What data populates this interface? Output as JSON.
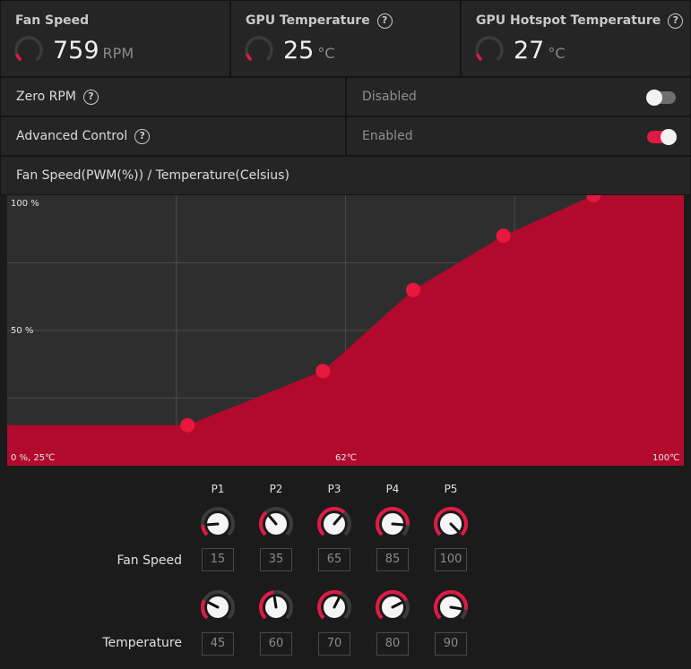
{
  "stats": {
    "fan_speed": {
      "title": "Fan Speed",
      "value": "759",
      "unit": "RPM",
      "gauge_fraction": 0.08
    },
    "gpu_temp": {
      "title": "GPU Temperature",
      "value": "25",
      "unit": "°C",
      "gauge_fraction": 0.08
    },
    "gpu_hotspot": {
      "title": "GPU Hotspot Temperature",
      "value": "27",
      "unit": "°C",
      "gauge_fraction": 0.08
    }
  },
  "help_glyph": "?",
  "zero_rpm": {
    "label": "Zero RPM",
    "state": "Disabled"
  },
  "advanced_control": {
    "label": "Advanced Control",
    "state": "Enabled"
  },
  "chart_header": "Fan Speed(PWM(%)) / Temperature(Celsius)",
  "chart_data": {
    "type": "area",
    "title": "Fan Speed(PWM(%)) / Temperature(Celsius)",
    "x_min": 25,
    "x_max": 100,
    "y_min": 0,
    "y_max": 100,
    "points": [
      {
        "name": "P1",
        "temp": 45,
        "speed": 15
      },
      {
        "name": "P2",
        "temp": 60,
        "speed": 35
      },
      {
        "name": "P3",
        "temp": 70,
        "speed": 65
      },
      {
        "name": "P4",
        "temp": 80,
        "speed": 85
      },
      {
        "name": "P5",
        "temp": 90,
        "speed": 100
      }
    ],
    "labels": {
      "y_top": "100 %",
      "y_mid": "50 %",
      "origin": "0 %, 25℃",
      "x_mid": "62℃",
      "x_max": "100℃"
    },
    "fill_color": "#b10a2d",
    "point_color": "#e8173f"
  },
  "controls": {
    "fan_speed_label": "Fan Speed",
    "temperature_label": "Temperature",
    "columns": [
      {
        "name": "P1",
        "speed": "15",
        "temp": "45"
      },
      {
        "name": "P2",
        "speed": "35",
        "temp": "60"
      },
      {
        "name": "P3",
        "speed": "65",
        "temp": "70"
      },
      {
        "name": "P4",
        "speed": "85",
        "temp": "80"
      },
      {
        "name": "P5",
        "speed": "100",
        "temp": "90"
      }
    ]
  },
  "colors": {
    "accent": "#e01a45",
    "track": "#3c3c3c"
  }
}
